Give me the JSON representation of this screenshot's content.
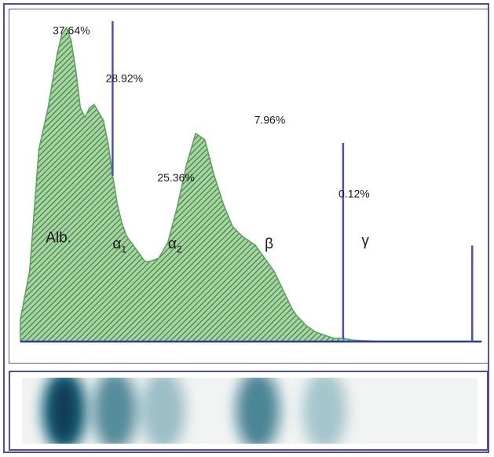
{
  "chart_data": {
    "type": "area",
    "title": "",
    "xlabel": "",
    "ylabel": "",
    "xlim": [
      0,
      100
    ],
    "ylim": [
      0,
      100
    ],
    "grid": false,
    "legend": "none",
    "curve": {
      "x": [
        0,
        2,
        4,
        6,
        8,
        9,
        10,
        11,
        12,
        13,
        14,
        15,
        16,
        18,
        19,
        20,
        21,
        22,
        23,
        24,
        25,
        26,
        27,
        28,
        30,
        32,
        34,
        36,
        38,
        40,
        42,
        44,
        46,
        48,
        49,
        50,
        51,
        52,
        53,
        54,
        55,
        56,
        57,
        58,
        59,
        60,
        62,
        64,
        66,
        68,
        70,
        72,
        74,
        76,
        78,
        80,
        82,
        84,
        86,
        88,
        90,
        92,
        94,
        96,
        98,
        100
      ],
      "y": [
        7,
        22,
        60,
        73,
        90,
        96,
        98,
        94,
        85,
        73,
        70,
        73,
        74,
        69,
        62,
        52,
        43,
        37,
        33,
        31,
        29,
        27,
        25,
        25,
        26,
        31,
        42,
        55,
        65,
        63,
        52,
        43,
        36,
        33,
        32,
        31,
        30,
        28,
        26,
        24,
        22,
        19,
        16,
        13,
        10,
        8,
        5,
        3,
        2,
        1,
        1,
        0.5,
        0.3,
        0.2,
        0.1,
        0.1,
        0.1,
        0.1,
        0.1,
        0.1,
        0.1,
        0.1,
        0.1,
        0.1,
        0.1,
        0.1
      ]
    },
    "dividers": [
      {
        "x": 20,
        "top": 100
      },
      {
        "x": 41,
        "top": 57
      },
      {
        "x": 70,
        "top": 62
      },
      {
        "x": 98,
        "top": 30
      }
    ],
    "band_labels": [
      {
        "text": "Alb.",
        "x": 5.5,
        "y": 31
      },
      {
        "text": "α",
        "sub": "1",
        "x": 20,
        "y": 29
      },
      {
        "text": "α",
        "sub": "2",
        "x": 32,
        "y": 29
      },
      {
        "text": "β",
        "x": 53,
        "y": 29
      },
      {
        "text": "γ",
        "x": 74,
        "y": 30
      }
    ],
    "percent_labels": [
      {
        "text": "37.64%",
        "x": 7,
        "y": 96
      },
      {
        "text": "28.92%",
        "x": 18.5,
        "y": 81
      },
      {
        "text": "25.36%",
        "x": 29.7,
        "y": 50
      },
      {
        "text": "7.96%",
        "x": 50.7,
        "y": 68
      },
      {
        "text": "0.12%",
        "x": 69,
        "y": 45
      }
    ],
    "gel_strip": {
      "bands": [
        {
          "x": 9.5,
          "intensity": 1.0
        },
        {
          "x": 20.5,
          "intensity": 0.65
        },
        {
          "x": 31,
          "intensity": 0.25
        },
        {
          "x": 51.5,
          "intensity": 0.7
        },
        {
          "x": 66,
          "intensity": 0.2
        }
      ]
    },
    "colors": {
      "fill": "#5ba15b",
      "hatch": "#2f7f3a",
      "divider": "#4b4ec0",
      "baseline": "#2c3a9c",
      "band": "#0e5f75"
    }
  }
}
